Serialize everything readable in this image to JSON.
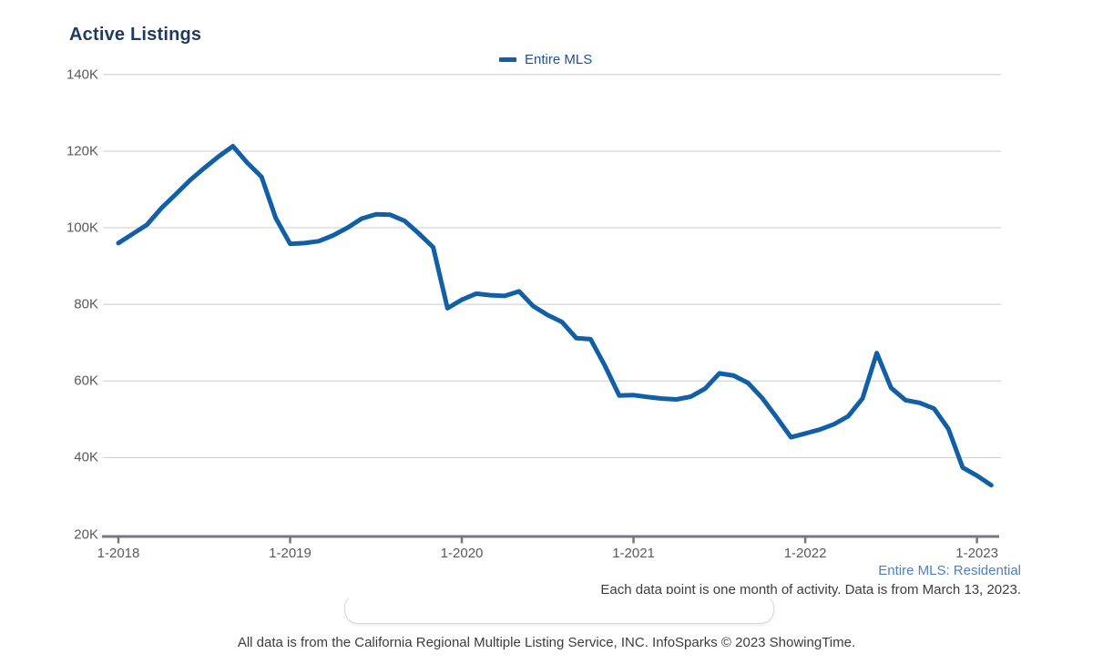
{
  "title": "Active Listings",
  "legend": {
    "label": "Entire MLS"
  },
  "notes": {
    "series_note": "Entire MLS: Residential",
    "data_note": "Each data point is one month of activity. Data is from March 13, 2023.",
    "attribution": "All data is from the California Regional Multiple Listing Service, INC. InfoSparks © 2023 ShowingTime."
  },
  "colors": {
    "line": "#125fa5",
    "title_text": "#1e3a5f",
    "legend_text": "#1d5291",
    "note_blue": "#4c7fc4",
    "axis_text": "#58595b",
    "gridline": "#cccccc",
    "axis_line": "#77787b",
    "body_text": "#3c3c3c"
  },
  "chart_data": {
    "type": "line",
    "title": "Active Listings",
    "values_unit": "thousands of active listings",
    "x_unit": "month",
    "x_start": "1-2018",
    "x_end": "2-2023",
    "x_tick_labels": [
      "1-2018",
      "1-2019",
      "1-2020",
      "1-2021",
      "1-2022",
      "1-2023"
    ],
    "y_tick_labels": [
      "20K",
      "40K",
      "60K",
      "80K",
      "100K",
      "120K",
      "140K"
    ],
    "ylim_thousands": [
      20,
      140
    ],
    "grid": "horizontal-only",
    "legend_position": "top-center",
    "series": [
      {
        "name": "Entire MLS",
        "months": [
          "2018-01",
          "2018-02",
          "2018-03",
          "2018-04",
          "2018-05",
          "2018-06",
          "2018-07",
          "2018-08",
          "2018-09",
          "2018-10",
          "2018-11",
          "2018-12",
          "2019-01",
          "2019-02",
          "2019-03",
          "2019-04",
          "2019-05",
          "2019-06",
          "2019-07",
          "2019-08",
          "2019-09",
          "2019-10",
          "2019-11",
          "2019-12",
          "2020-01",
          "2020-02",
          "2020-03",
          "2020-04",
          "2020-05",
          "2020-06",
          "2020-07",
          "2020-08",
          "2020-09",
          "2020-10",
          "2020-11",
          "2020-12",
          "2021-01",
          "2021-02",
          "2021-03",
          "2021-04",
          "2021-05",
          "2021-06",
          "2021-07",
          "2021-08",
          "2021-09",
          "2021-10",
          "2021-11",
          "2021-12",
          "2022-01",
          "2022-02",
          "2022-03",
          "2022-04",
          "2022-05",
          "2022-06",
          "2022-07",
          "2022-08",
          "2022-09",
          "2022-10",
          "2022-11",
          "2022-12",
          "2023-01",
          "2023-02"
        ],
        "values": [
          96.0,
          98.4,
          100.8,
          105.1,
          108.7,
          112.4,
          115.6,
          118.6,
          121.3,
          117.0,
          113.3,
          102.5,
          95.8,
          96.0,
          96.5,
          98.0,
          100.0,
          102.4,
          103.5,
          103.4,
          101.8,
          98.5,
          94.9,
          79.0,
          81.2,
          82.8,
          82.4,
          82.2,
          83.4,
          79.5,
          77.2,
          75.4,
          71.2,
          70.9,
          64.0,
          56.2,
          56.3,
          55.8,
          55.4,
          55.2,
          55.9,
          58.0,
          62.0,
          61.4,
          59.5,
          55.5,
          50.5,
          45.3,
          46.3,
          47.3,
          48.7,
          50.8,
          55.4,
          67.3,
          58.2,
          55.0,
          54.3,
          52.8,
          47.5,
          37.4,
          35.3,
          32.8
        ]
      }
    ]
  }
}
